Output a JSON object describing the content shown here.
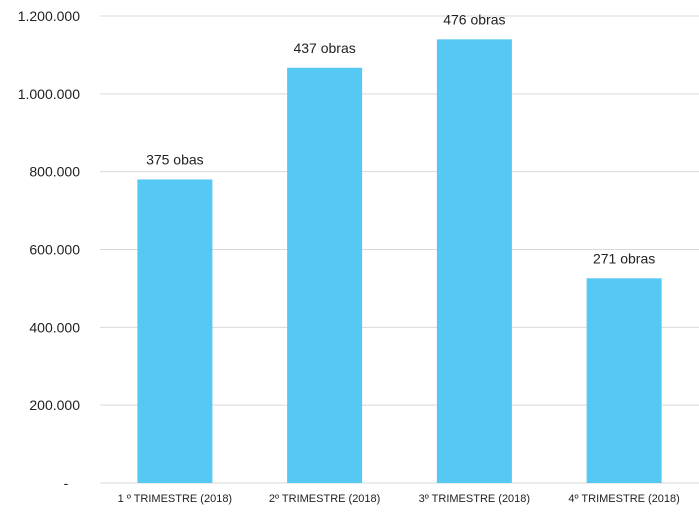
{
  "chart_data": {
    "type": "bar",
    "categories": [
      "1 º TRIMESTRE (2018)",
      "2º TRIMESTRE  (2018)",
      "3º TRIMESTRE (2018)",
      "4º TRIMESTRE (2018)"
    ],
    "values": [
      780000,
      1067000,
      1140000,
      526000
    ],
    "data_labels": [
      "375 obas",
      "437 obras",
      "476  obras",
      "271 obras"
    ],
    "ylim": [
      0,
      1200000
    ],
    "yticks": [
      {
        "value": 0,
        "label": "-"
      },
      {
        "value": 200000,
        "label": "200.000"
      },
      {
        "value": 400000,
        "label": "400.000"
      },
      {
        "value": 600000,
        "label": "600.000"
      },
      {
        "value": 800000,
        "label": "800.000"
      },
      {
        "value": 1000000,
        "label": "1.000.000"
      },
      {
        "value": 1200000,
        "label": "1.200.000"
      }
    ],
    "grid": true,
    "legend": "none",
    "bar_color": "#56C8F4",
    "grid_color": "#D9D9D9"
  }
}
